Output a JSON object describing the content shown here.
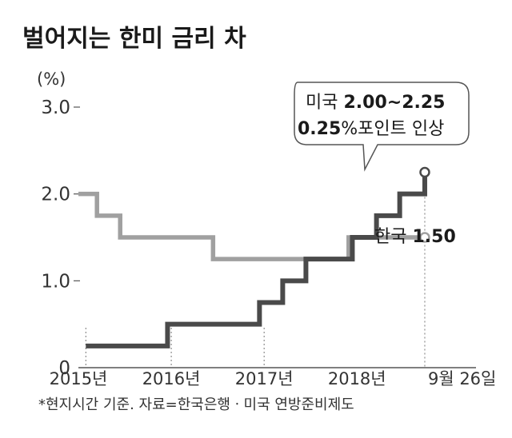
{
  "chart_data": {
    "type": "line",
    "title": "벌어지는 한미 금리 차",
    "ylabel": "(%)",
    "ylim": [
      0,
      3.0
    ],
    "yticks": [
      "0",
      "1.0",
      "2.0",
      "3.0"
    ],
    "xlim": [
      2015.0,
      2018.98
    ],
    "xticks": [
      {
        "label": "2015년",
        "value": 2015.0
      },
      {
        "label": "2016년",
        "value": 2016.0
      },
      {
        "label": "2017년",
        "value": 2017.0
      },
      {
        "label": "2018년",
        "value": 2018.0
      }
    ],
    "date_label": "9월 26일",
    "date_value": 2018.73,
    "grid": false,
    "series": [
      {
        "name": "미국",
        "color": "#4a4a4a",
        "step": true,
        "x": [
          2015.08,
          2015.96,
          2016.95,
          2017.2,
          2017.45,
          2017.95,
          2018.21,
          2018.46,
          2018.73
        ],
        "y": [
          0.25,
          0.5,
          0.75,
          1.0,
          1.25,
          1.5,
          1.75,
          2.0,
          2.25
        ]
      },
      {
        "name": "한국",
        "color": "#a0a0a0",
        "step": true,
        "x": [
          2015.0,
          2015.2,
          2015.45,
          2016.45,
          2017.91,
          2018.73
        ],
        "y": [
          2.0,
          1.75,
          1.5,
          1.25,
          1.5,
          1.5
        ]
      }
    ],
    "annotations": {
      "us_line1_prefix": "미국 ",
      "us_line1_value": "2.00~2.25",
      "us_line2_value": "0.25",
      "us_line2_suffix": "%포인트 인상",
      "kr_prefix": "한국 ",
      "kr_value": "1.50"
    },
    "footnote": "*현지시간 기준. 자료=한국은행ㆍ미국 연방준비제도"
  },
  "colors": {
    "us": "#4a4a4a",
    "kr": "#a0a0a0",
    "axis": "#555555"
  }
}
